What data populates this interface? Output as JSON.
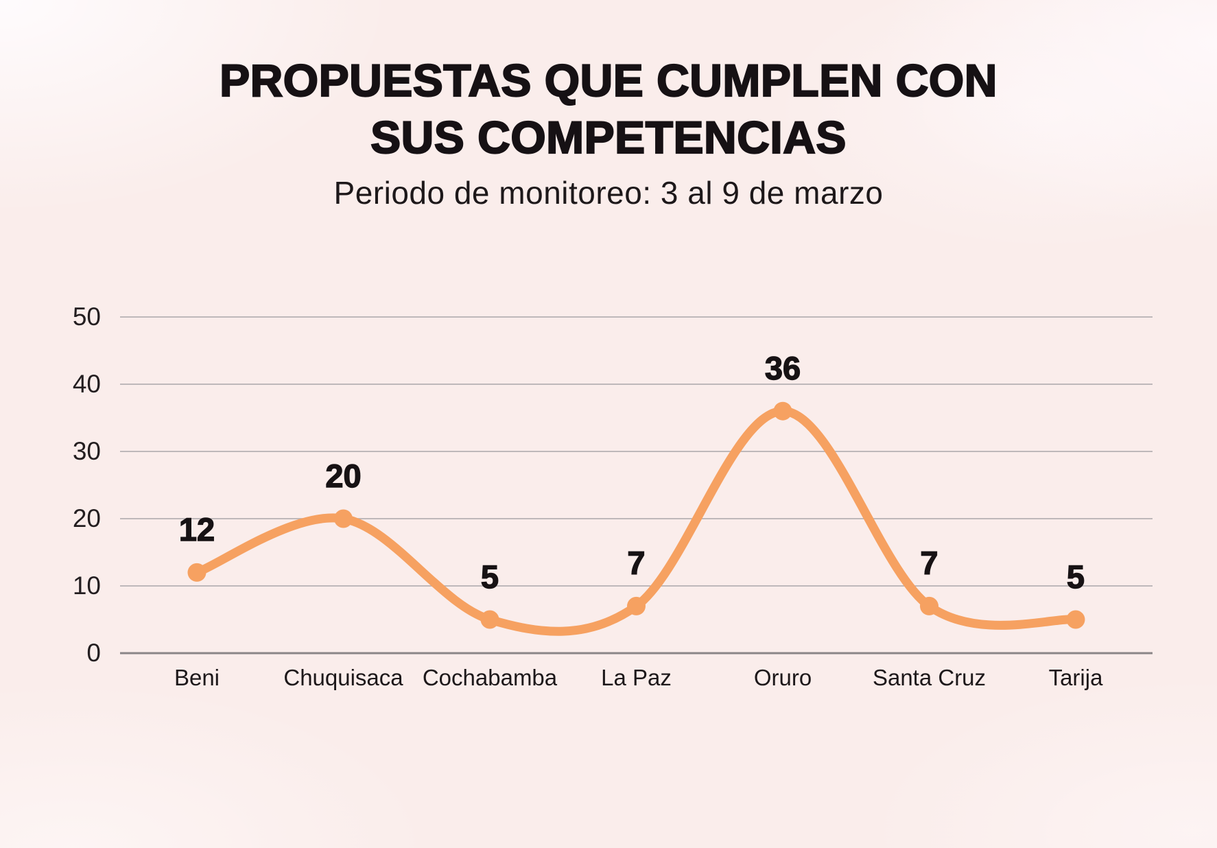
{
  "header": {
    "title_line1": "PROPUESTAS QUE CUMPLEN CON",
    "title_line2": "SUS COMPETENCIAS",
    "subtitle": "Periodo de monitoreo: 3 al 9 de marzo"
  },
  "chart_data": {
    "type": "line",
    "title": "PROPUESTAS QUE CUMPLEN CON SUS COMPETENCIAS",
    "subtitle": "Periodo de monitoreo: 3 al 9 de marzo",
    "categories": [
      "Beni",
      "Chuquisaca",
      "Cochabamba",
      "La Paz",
      "Oruro",
      "Santa Cruz",
      "Tarija"
    ],
    "values": [
      12,
      20,
      5,
      7,
      36,
      7,
      5
    ],
    "xlabel": "",
    "ylabel": "",
    "ylim": [
      0,
      50
    ],
    "yticks": [
      0,
      10,
      20,
      30,
      40,
      50
    ],
    "grid": true,
    "legend": false,
    "smooth": true,
    "line_color": "#f6a161",
    "point_color": "#f6a161",
    "data_label_color": "#171214",
    "axis_text_color": "#231e20",
    "gridline_color": "#b6b1b3",
    "axis_line_color": "#8a8587",
    "background_color": "#faedeb"
  }
}
